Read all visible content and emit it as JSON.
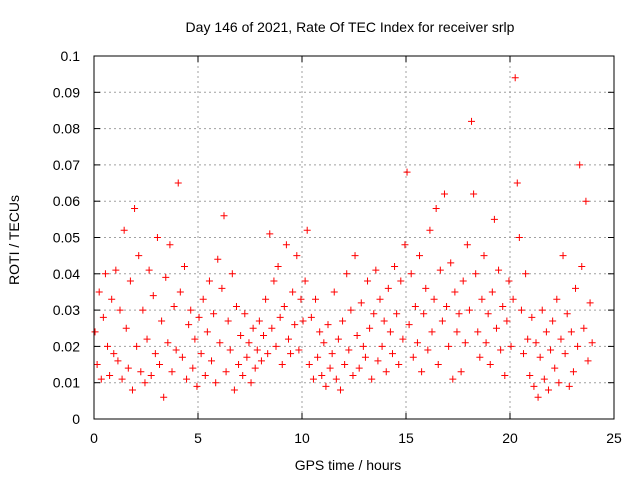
{
  "chart_data": {
    "type": "scatter",
    "title": "Day 146 of 2021, Rate Of TEC Index for receiver srlp",
    "xlabel": "GPS time / hours",
    "ylabel": "ROTI / TECUs",
    "xlim": [
      0,
      25
    ],
    "ylim": [
      0,
      0.1
    ],
    "xticks": [
      "0",
      "5",
      "10",
      "15",
      "20",
      "25"
    ],
    "yticks": [
      "0",
      "0.01",
      "0.02",
      "0.03",
      "0.04",
      "0.05",
      "0.06",
      "0.07",
      "0.08",
      "0.09",
      "0.1"
    ],
    "grid": true,
    "marker": "plus",
    "color": "#ff0000",
    "series": [
      {
        "name": "ROTI",
        "points": [
          [
            0.05,
            0.024
          ],
          [
            0.15,
            0.015
          ],
          [
            0.25,
            0.035
          ],
          [
            0.35,
            0.011
          ],
          [
            0.45,
            0.028
          ],
          [
            0.55,
            0.04
          ],
          [
            0.65,
            0.02
          ],
          [
            0.75,
            0.012
          ],
          [
            0.85,
            0.033
          ],
          [
            0.95,
            0.018
          ],
          [
            1.05,
            0.041
          ],
          [
            1.15,
            0.016
          ],
          [
            1.25,
            0.03
          ],
          [
            1.35,
            0.011
          ],
          [
            1.45,
            0.052
          ],
          [
            1.55,
            0.025
          ],
          [
            1.65,
            0.014
          ],
          [
            1.75,
            0.038
          ],
          [
            1.85,
            0.008
          ],
          [
            1.95,
            0.058
          ],
          [
            2.05,
            0.02
          ],
          [
            2.15,
            0.045
          ],
          [
            2.25,
            0.013
          ],
          [
            2.35,
            0.03
          ],
          [
            2.45,
            0.01
          ],
          [
            2.55,
            0.022
          ],
          [
            2.65,
            0.041
          ],
          [
            2.75,
            0.012
          ],
          [
            2.85,
            0.034
          ],
          [
            2.95,
            0.018
          ],
          [
            3.05,
            0.05
          ],
          [
            3.15,
            0.015
          ],
          [
            3.25,
            0.027
          ],
          [
            3.35,
            0.006
          ],
          [
            3.45,
            0.039
          ],
          [
            3.55,
            0.021
          ],
          [
            3.65,
            0.048
          ],
          [
            3.75,
            0.013
          ],
          [
            3.85,
            0.031
          ],
          [
            3.95,
            0.019
          ],
          [
            4.05,
            0.065
          ],
          [
            4.15,
            0.035
          ],
          [
            4.25,
            0.017
          ],
          [
            4.35,
            0.042
          ],
          [
            4.45,
            0.011
          ],
          [
            4.55,
            0.026
          ],
          [
            4.65,
            0.03
          ],
          [
            4.75,
            0.014
          ],
          [
            4.85,
            0.022
          ],
          [
            4.95,
            0.009
          ],
          [
            5.05,
            0.028
          ],
          [
            5.15,
            0.018
          ],
          [
            5.25,
            0.033
          ],
          [
            5.35,
            0.012
          ],
          [
            5.45,
            0.024
          ],
          [
            5.55,
            0.038
          ],
          [
            5.65,
            0.016
          ],
          [
            5.75,
            0.029
          ],
          [
            5.85,
            0.01
          ],
          [
            5.95,
            0.044
          ],
          [
            6.05,
            0.021
          ],
          [
            6.15,
            0.036
          ],
          [
            6.25,
            0.056
          ],
          [
            6.35,
            0.013
          ],
          [
            6.45,
            0.027
          ],
          [
            6.55,
            0.019
          ],
          [
            6.65,
            0.04
          ],
          [
            6.75,
            0.008
          ],
          [
            6.85,
            0.031
          ],
          [
            6.95,
            0.015
          ],
          [
            7.05,
            0.023
          ],
          [
            7.15,
            0.012
          ],
          [
            7.25,
            0.029
          ],
          [
            7.35,
            0.017
          ],
          [
            7.45,
            0.021
          ],
          [
            7.55,
            0.01
          ],
          [
            7.65,
            0.025
          ],
          [
            7.75,
            0.014
          ],
          [
            7.85,
            0.019
          ],
          [
            7.95,
            0.027
          ],
          [
            8.05,
            0.016
          ],
          [
            8.15,
            0.023
          ],
          [
            8.25,
            0.033
          ],
          [
            8.35,
            0.018
          ],
          [
            8.45,
            0.051
          ],
          [
            8.55,
            0.025
          ],
          [
            8.65,
            0.038
          ],
          [
            8.75,
            0.02
          ],
          [
            8.85,
            0.042
          ],
          [
            8.95,
            0.028
          ],
          [
            9.05,
            0.015
          ],
          [
            9.15,
            0.031
          ],
          [
            9.25,
            0.048
          ],
          [
            9.35,
            0.022
          ],
          [
            9.45,
            0.018
          ],
          [
            9.55,
            0.035
          ],
          [
            9.65,
            0.026
          ],
          [
            9.75,
            0.045
          ],
          [
            9.85,
            0.019
          ],
          [
            9.95,
            0.033
          ],
          [
            10.05,
            0.027
          ],
          [
            10.15,
            0.038
          ],
          [
            10.25,
            0.052
          ],
          [
            10.35,
            0.015
          ],
          [
            10.45,
            0.028
          ],
          [
            10.55,
            0.011
          ],
          [
            10.65,
            0.033
          ],
          [
            10.75,
            0.017
          ],
          [
            10.85,
            0.024
          ],
          [
            10.95,
            0.012
          ],
          [
            11.05,
            0.021
          ],
          [
            11.15,
            0.009
          ],
          [
            11.25,
            0.026
          ],
          [
            11.35,
            0.014
          ],
          [
            11.45,
            0.018
          ],
          [
            11.55,
            0.035
          ],
          [
            11.65,
            0.011
          ],
          [
            11.75,
            0.022
          ],
          [
            11.85,
            0.008
          ],
          [
            11.95,
            0.027
          ],
          [
            12.05,
            0.015
          ],
          [
            12.15,
            0.04
          ],
          [
            12.25,
            0.019
          ],
          [
            12.35,
            0.03
          ],
          [
            12.45,
            0.012
          ],
          [
            12.55,
            0.045
          ],
          [
            12.65,
            0.023
          ],
          [
            12.75,
            0.014
          ],
          [
            12.85,
            0.032
          ],
          [
            12.95,
            0.02
          ],
          [
            13.05,
            0.017
          ],
          [
            13.15,
            0.038
          ],
          [
            13.25,
            0.025
          ],
          [
            13.35,
            0.011
          ],
          [
            13.45,
            0.029
          ],
          [
            13.55,
            0.041
          ],
          [
            13.65,
            0.016
          ],
          [
            13.75,
            0.033
          ],
          [
            13.85,
            0.02
          ],
          [
            13.95,
            0.027
          ],
          [
            14.05,
            0.013
          ],
          [
            14.15,
            0.036
          ],
          [
            14.25,
            0.024
          ],
          [
            14.35,
            0.018
          ],
          [
            14.45,
            0.042
          ],
          [
            14.55,
            0.029
          ],
          [
            14.65,
            0.015
          ],
          [
            14.75,
            0.038
          ],
          [
            14.85,
            0.022
          ],
          [
            14.95,
            0.048
          ],
          [
            15.05,
            0.068
          ],
          [
            15.15,
            0.026
          ],
          [
            15.25,
            0.04
          ],
          [
            15.35,
            0.017
          ],
          [
            15.45,
            0.031
          ],
          [
            15.55,
            0.021
          ],
          [
            15.65,
            0.045
          ],
          [
            15.75,
            0.013
          ],
          [
            15.85,
            0.029
          ],
          [
            15.95,
            0.036
          ],
          [
            16.05,
            0.019
          ],
          [
            16.15,
            0.052
          ],
          [
            16.25,
            0.024
          ],
          [
            16.35,
            0.033
          ],
          [
            16.45,
            0.058
          ],
          [
            16.55,
            0.015
          ],
          [
            16.65,
            0.041
          ],
          [
            16.75,
            0.027
          ],
          [
            16.85,
            0.062
          ],
          [
            16.95,
            0.031
          ],
          [
            17.05,
            0.02
          ],
          [
            17.15,
            0.043
          ],
          [
            17.25,
            0.011
          ],
          [
            17.35,
            0.035
          ],
          [
            17.45,
            0.024
          ],
          [
            17.55,
            0.029
          ],
          [
            17.65,
            0.013
          ],
          [
            17.75,
            0.038
          ],
          [
            17.85,
            0.021
          ],
          [
            17.95,
            0.048
          ],
          [
            18.05,
            0.03
          ],
          [
            18.15,
            0.082
          ],
          [
            18.25,
            0.062
          ],
          [
            18.35,
            0.04
          ],
          [
            18.45,
            0.024
          ],
          [
            18.55,
            0.017
          ],
          [
            18.65,
            0.033
          ],
          [
            18.75,
            0.045
          ],
          [
            18.85,
            0.021
          ],
          [
            18.95,
            0.029
          ],
          [
            19.05,
            0.015
          ],
          [
            19.15,
            0.035
          ],
          [
            19.25,
            0.055
          ],
          [
            19.35,
            0.025
          ],
          [
            19.45,
            0.041
          ],
          [
            19.55,
            0.019
          ],
          [
            19.65,
            0.031
          ],
          [
            19.75,
            0.012
          ],
          [
            19.85,
            0.027
          ],
          [
            19.95,
            0.038
          ],
          [
            20.05,
            0.02
          ],
          [
            20.15,
            0.033
          ],
          [
            20.25,
            0.094
          ],
          [
            20.35,
            0.065
          ],
          [
            20.45,
            0.05
          ],
          [
            20.55,
            0.03
          ],
          [
            20.65,
            0.018
          ],
          [
            20.75,
            0.04
          ],
          [
            20.85,
            0.022
          ],
          [
            20.95,
            0.012
          ],
          [
            21.05,
            0.028
          ],
          [
            21.15,
            0.009
          ],
          [
            21.25,
            0.021
          ],
          [
            21.35,
            0.006
          ],
          [
            21.45,
            0.017
          ],
          [
            21.55,
            0.03
          ],
          [
            21.65,
            0.011
          ],
          [
            21.75,
            0.024
          ],
          [
            21.85,
            0.008
          ],
          [
            21.95,
            0.019
          ],
          [
            22.05,
            0.027
          ],
          [
            22.15,
            0.014
          ],
          [
            22.25,
            0.033
          ],
          [
            22.35,
            0.01
          ],
          [
            22.45,
            0.022
          ],
          [
            22.55,
            0.045
          ],
          [
            22.65,
            0.018
          ],
          [
            22.75,
            0.029
          ],
          [
            22.85,
            0.009
          ],
          [
            22.95,
            0.024
          ],
          [
            23.05,
            0.013
          ],
          [
            23.15,
            0.036
          ],
          [
            23.25,
            0.02
          ],
          [
            23.35,
            0.07
          ],
          [
            23.45,
            0.042
          ],
          [
            23.55,
            0.025
          ],
          [
            23.65,
            0.06
          ],
          [
            23.75,
            0.016
          ],
          [
            23.85,
            0.032
          ],
          [
            23.95,
            0.021
          ]
        ]
      }
    ]
  }
}
